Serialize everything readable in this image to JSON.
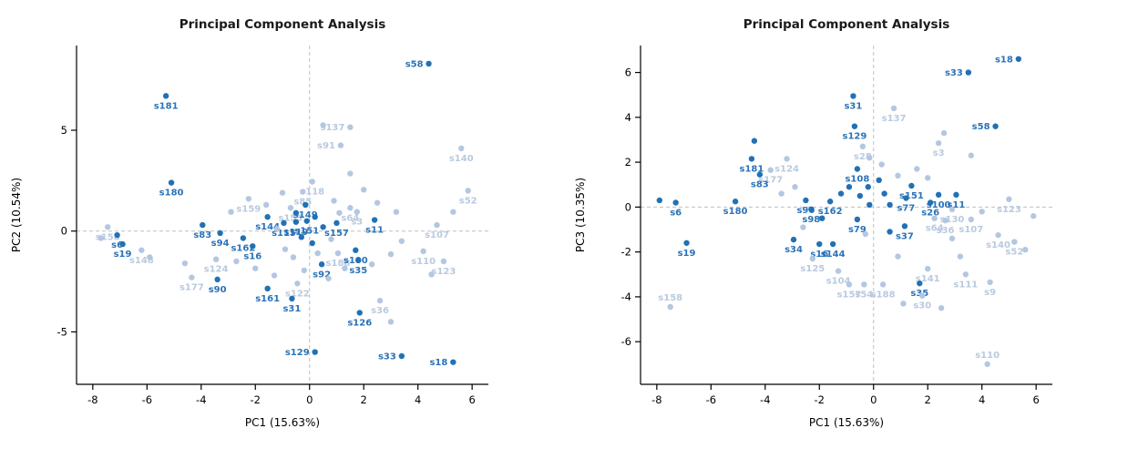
{
  "figure": {
    "background": "#ffffff",
    "layout": "two scatter panels side by side"
  },
  "chart_data": [
    {
      "type": "scatter",
      "title": "Principal Component Analysis",
      "xlabel": "PC1 (15.63%)",
      "ylabel": "PC2 (10.54%)",
      "xlim": [
        -8.6,
        6.6
      ],
      "ylim": [
        -7.6,
        9.2
      ],
      "xticks": [
        -8,
        -6,
        -4,
        -2,
        0,
        2,
        4,
        6
      ],
      "yticks": [
        -5,
        0,
        5
      ],
      "grid": "dashed-zero-lines",
      "legend": "none",
      "colors": {
        "dark": "#2171b5",
        "light": "#b3c7e1",
        "dark_label": "#2b73b8",
        "light_label": "#b9cadf"
      },
      "point_format": [
        "label",
        "x",
        "y",
        "shade d=dark l=light",
        "label_position optional"
      ],
      "points": [
        [
          "s58",
          4.4,
          8.3,
          "d",
          "l"
        ],
        [
          "s181",
          -5.3,
          6.7,
          "d",
          "b"
        ],
        [
          "s137",
          1.5,
          5.15,
          "l",
          "l"
        ],
        [
          "s91",
          1.15,
          4.25,
          "l",
          "l"
        ],
        [
          "",
          0.5,
          5.25,
          "l"
        ],
        [
          "s140",
          5.6,
          4.1,
          "l",
          "b"
        ],
        [
          "s52",
          5.85,
          2.0,
          "l",
          "b"
        ],
        [
          "s180",
          -5.1,
          2.4,
          "d",
          "b"
        ],
        [
          "s159",
          -2.25,
          1.6,
          "l",
          "b"
        ],
        [
          "s118",
          0.1,
          2.45,
          "l",
          "b"
        ],
        [
          "s85",
          -0.25,
          1.95,
          "l",
          "b"
        ],
        [
          "",
          -1.0,
          1.9,
          "l"
        ],
        [
          "",
          1.5,
          2.85,
          "l"
        ],
        [
          "",
          2.0,
          2.05,
          "l"
        ],
        [
          "s153",
          -0.7,
          1.15,
          "l",
          "b"
        ],
        [
          "s149",
          -0.15,
          1.3,
          "d",
          "b"
        ],
        [
          "s64",
          1.5,
          1.15,
          "l",
          "b"
        ],
        [
          "s3",
          1.75,
          0.95,
          "l",
          "b"
        ],
        [
          "s144",
          -1.55,
          0.7,
          "d",
          "b"
        ],
        [
          "s115",
          -0.95,
          0.4,
          "d",
          "b"
        ],
        [
          "s119",
          -0.5,
          0.45,
          "d",
          "b"
        ],
        [
          "s151",
          -0.1,
          0.5,
          "d",
          "b"
        ],
        [
          "s157",
          1.0,
          0.4,
          "d",
          "b"
        ],
        [
          "s11",
          2.4,
          0.55,
          "d",
          "b"
        ],
        [
          "",
          3.2,
          0.95,
          "l"
        ],
        [
          "",
          2.5,
          1.4,
          "l"
        ],
        [
          "s107",
          4.7,
          0.3,
          "l",
          "b"
        ],
        [
          "",
          5.3,
          0.95,
          "l"
        ],
        [
          "s158",
          -7.45,
          0.2,
          "l",
          "b"
        ],
        [
          "s6",
          -7.1,
          -0.2,
          "d",
          "b"
        ],
        [
          "s19",
          -6.9,
          -0.65,
          "d",
          "b"
        ],
        [
          "",
          -7.7,
          -0.35,
          "l"
        ],
        [
          "s148",
          -6.2,
          -0.95,
          "l",
          "b"
        ],
        [
          "",
          -5.9,
          -1.3,
          "l"
        ],
        [
          "s83",
          -3.95,
          0.3,
          "d",
          "b"
        ],
        [
          "s94",
          -3.3,
          -0.1,
          "d",
          "b"
        ],
        [
          "s162",
          -2.45,
          -0.35,
          "d",
          "b"
        ],
        [
          "s16",
          -2.1,
          -0.75,
          "d",
          "b"
        ],
        [
          "",
          -2.9,
          0.95,
          "l"
        ],
        [
          "",
          -1.6,
          1.3,
          "l"
        ],
        [
          "",
          -1.2,
          0.1,
          "l"
        ],
        [
          "",
          -0.5,
          0.9,
          "d"
        ],
        [
          "",
          0.2,
          0.7,
          "d"
        ],
        [
          "",
          0.5,
          0.2,
          "d"
        ],
        [
          "",
          -0.3,
          -0.3,
          "d"
        ],
        [
          "",
          0.1,
          -0.6,
          "d"
        ],
        [
          "",
          0.8,
          -0.4,
          "l"
        ],
        [
          "",
          1.1,
          0.9,
          "l"
        ],
        [
          "",
          0.9,
          1.5,
          "l"
        ],
        [
          "s124",
          -3.45,
          -1.4,
          "l",
          "b"
        ],
        [
          "",
          -4.6,
          -1.6,
          "l"
        ],
        [
          "s177",
          -4.35,
          -2.3,
          "l",
          "b"
        ],
        [
          "s90",
          -3.4,
          -2.4,
          "d",
          "b"
        ],
        [
          "",
          -2.7,
          -1.5,
          "l"
        ],
        [
          "",
          -2.0,
          -1.85,
          "l"
        ],
        [
          "s161",
          -1.55,
          -2.85,
          "d",
          "b"
        ],
        [
          "s122",
          -0.45,
          -2.6,
          "l",
          "b"
        ],
        [
          "s31",
          -0.65,
          -3.35,
          "d",
          "b"
        ],
        [
          "",
          -1.3,
          -2.2,
          "l"
        ],
        [
          "",
          -0.9,
          -0.9,
          "l"
        ],
        [
          "",
          -0.6,
          -1.3,
          "l"
        ],
        [
          "",
          -0.2,
          -1.95,
          "l"
        ],
        [
          "",
          0.3,
          -1.1,
          "l"
        ],
        [
          "s92",
          0.45,
          -1.65,
          "d",
          "b"
        ],
        [
          "",
          0.7,
          -2.35,
          "l"
        ],
        [
          "s188",
          1.05,
          -1.1,
          "l",
          "b"
        ],
        [
          "s100",
          1.7,
          -0.95,
          "d",
          "b"
        ],
        [
          "s35",
          1.8,
          -1.45,
          "d",
          "b"
        ],
        [
          "",
          1.3,
          -1.85,
          "l"
        ],
        [
          "",
          2.3,
          -1.65,
          "l"
        ],
        [
          "",
          3.0,
          -1.15,
          "l"
        ],
        [
          "",
          3.4,
          -0.5,
          "l"
        ],
        [
          "s110",
          4.2,
          -1.0,
          "l",
          "b"
        ],
        [
          "s123",
          4.95,
          -1.5,
          "l",
          "b"
        ],
        [
          "",
          4.5,
          -2.15,
          "l"
        ],
        [
          "s36",
          2.6,
          -3.45,
          "l",
          "b"
        ],
        [
          "",
          3.0,
          -4.5,
          "l"
        ],
        [
          "s126",
          1.85,
          -4.05,
          "d",
          "b"
        ],
        [
          "s129",
          0.2,
          -6.0,
          "d",
          "l"
        ],
        [
          "s33",
          3.4,
          -6.2,
          "d",
          "l"
        ],
        [
          "s18",
          5.3,
          -6.5,
          "d",
          "l"
        ]
      ]
    },
    {
      "type": "scatter",
      "title": "Principal Component Analysis",
      "xlabel": "PC1 (15.63%)",
      "ylabel": "PC3 (10.35%)",
      "xlim": [
        -8.6,
        6.6
      ],
      "ylim": [
        -7.9,
        7.2
      ],
      "xticks": [
        -8,
        -6,
        -4,
        -2,
        0,
        2,
        4,
        6
      ],
      "yticks": [
        -6,
        -4,
        -2,
        0,
        2,
        4,
        6
      ],
      "grid": "dashed-zero-lines",
      "legend": "none",
      "colors": {
        "dark": "#2171b5",
        "light": "#b3c7e1",
        "dark_label": "#2b73b8",
        "light_label": "#b9cadf"
      },
      "point_format": [
        "label",
        "x",
        "y",
        "shade d=dark l=light",
        "label_position optional"
      ],
      "points": [
        [
          "s18",
          5.35,
          6.6,
          "d",
          "l"
        ],
        [
          "s33",
          3.5,
          6.0,
          "d",
          "l"
        ],
        [
          "s58",
          4.5,
          3.6,
          "d",
          "l"
        ],
        [
          "s31",
          -0.75,
          4.95,
          "d",
          "b"
        ],
        [
          "s137",
          0.75,
          4.4,
          "l",
          "b"
        ],
        [
          "s129",
          -0.7,
          3.6,
          "d",
          "b"
        ],
        [
          "",
          2.6,
          3.3,
          "l"
        ],
        [
          "s3",
          2.4,
          2.85,
          "l",
          "b"
        ],
        [
          "s28",
          -0.4,
          2.7,
          "l",
          "b"
        ],
        [
          "",
          -4.4,
          2.95,
          "d"
        ],
        [
          "s181",
          -4.5,
          2.15,
          "d",
          "b"
        ],
        [
          "s124",
          -3.2,
          2.15,
          "l",
          "b"
        ],
        [
          "s177",
          -3.8,
          1.65,
          "l",
          "b"
        ],
        [
          "s83",
          -4.2,
          1.45,
          "d",
          "b"
        ],
        [
          "",
          -3.4,
          0.6,
          "l"
        ],
        [
          "",
          -2.9,
          0.9,
          "l"
        ],
        [
          "s108",
          -0.6,
          1.7,
          "d",
          "b"
        ],
        [
          "",
          -0.15,
          2.2,
          "l"
        ],
        [
          "",
          0.3,
          1.9,
          "l"
        ],
        [
          "",
          0.9,
          1.4,
          "l"
        ],
        [
          "",
          1.6,
          1.7,
          "l"
        ],
        [
          "",
          2.0,
          1.3,
          "l"
        ],
        [
          "",
          3.6,
          2.3,
          "l"
        ],
        [
          "s151",
          1.4,
          0.95,
          "d",
          "b"
        ],
        [
          "s77",
          1.2,
          0.4,
          "d",
          "b"
        ],
        [
          "s100",
          2.4,
          0.55,
          "d",
          "b"
        ],
        [
          "s11",
          3.05,
          0.55,
          "d",
          "b"
        ],
        [
          "s26",
          2.1,
          0.2,
          "d",
          "b"
        ],
        [
          "s130",
          2.9,
          -0.1,
          "l",
          "b"
        ],
        [
          "s123",
          5.0,
          0.35,
          "l",
          "b"
        ],
        [
          "",
          5.9,
          -0.4,
          "l"
        ],
        [
          "s107",
          3.6,
          -0.55,
          "l",
          "b"
        ],
        [
          "",
          4.0,
          -0.2,
          "l"
        ],
        [
          "s140",
          4.6,
          -1.25,
          "l",
          "b"
        ],
        [
          "s52",
          5.2,
          -1.55,
          "l",
          "b"
        ],
        [
          "",
          5.6,
          -1.9,
          "l"
        ],
        [
          "s180",
          -5.1,
          0.25,
          "d",
          "b"
        ],
        [
          "s6",
          -7.3,
          0.2,
          "d",
          "b"
        ],
        [
          "",
          -7.9,
          0.3,
          "d"
        ],
        [
          "s19",
          -6.9,
          -1.6,
          "d",
          "b"
        ],
        [
          "s90",
          -2.5,
          0.3,
          "d",
          "b"
        ],
        [
          "s98",
          -2.3,
          -0.1,
          "d",
          "b"
        ],
        [
          "s162",
          -1.6,
          0.25,
          "d",
          "b"
        ],
        [
          "",
          -1.9,
          -0.5,
          "d"
        ],
        [
          "",
          -1.2,
          0.6,
          "d"
        ],
        [
          "",
          -0.9,
          0.9,
          "d"
        ],
        [
          "",
          -0.5,
          0.5,
          "d"
        ],
        [
          "",
          -0.2,
          0.9,
          "d"
        ],
        [
          "",
          0.2,
          1.2,
          "d"
        ],
        [
          "",
          0.4,
          0.6,
          "d"
        ],
        [
          "",
          -0.15,
          0.1,
          "d"
        ],
        [
          "",
          0.6,
          0.1,
          "d"
        ],
        [
          "s79",
          -0.6,
          -0.55,
          "d",
          "b"
        ],
        [
          "s37",
          1.15,
          -0.85,
          "d",
          "b"
        ],
        [
          "",
          0.6,
          -1.1,
          "d"
        ],
        [
          "s64",
          2.25,
          -0.5,
          "l",
          "b"
        ],
        [
          "s36",
          2.65,
          -0.6,
          "l",
          "b"
        ],
        [
          "s34",
          -2.95,
          -1.45,
          "d",
          "b"
        ],
        [
          "s16",
          -2.0,
          -1.65,
          "d",
          "b"
        ],
        [
          "s144",
          -1.5,
          -1.65,
          "d",
          "b"
        ],
        [
          "s125",
          -2.25,
          -2.3,
          "l",
          "b"
        ],
        [
          "",
          -2.6,
          -0.9,
          "l"
        ],
        [
          "s104",
          -1.3,
          -2.85,
          "l",
          "b"
        ],
        [
          "",
          -0.3,
          -1.2,
          "l"
        ],
        [
          "",
          0.9,
          -2.2,
          "l"
        ],
        [
          "",
          2.9,
          -1.4,
          "l"
        ],
        [
          "",
          3.2,
          -2.2,
          "l"
        ],
        [
          "s141",
          2.0,
          -2.75,
          "l",
          "b"
        ],
        [
          "s111",
          3.4,
          -3.0,
          "l",
          "b"
        ],
        [
          "s35",
          1.7,
          -3.4,
          "d",
          "b"
        ],
        [
          "s9",
          4.3,
          -3.35,
          "l",
          "b"
        ],
        [
          "s157",
          -0.9,
          -3.45,
          "l",
          "b"
        ],
        [
          "s54",
          -0.35,
          -3.45,
          "l",
          "b"
        ],
        [
          "s188",
          0.35,
          -3.45,
          "l",
          "b"
        ],
        [
          "s30",
          1.8,
          -3.95,
          "l",
          "b"
        ],
        [
          "",
          2.5,
          -4.5,
          "l"
        ],
        [
          "",
          1.1,
          -4.3,
          "l"
        ],
        [
          "s158",
          -7.5,
          -4.45,
          "l",
          "a"
        ],
        [
          "s110",
          4.2,
          -7.0,
          "l",
          "a"
        ]
      ]
    }
  ]
}
